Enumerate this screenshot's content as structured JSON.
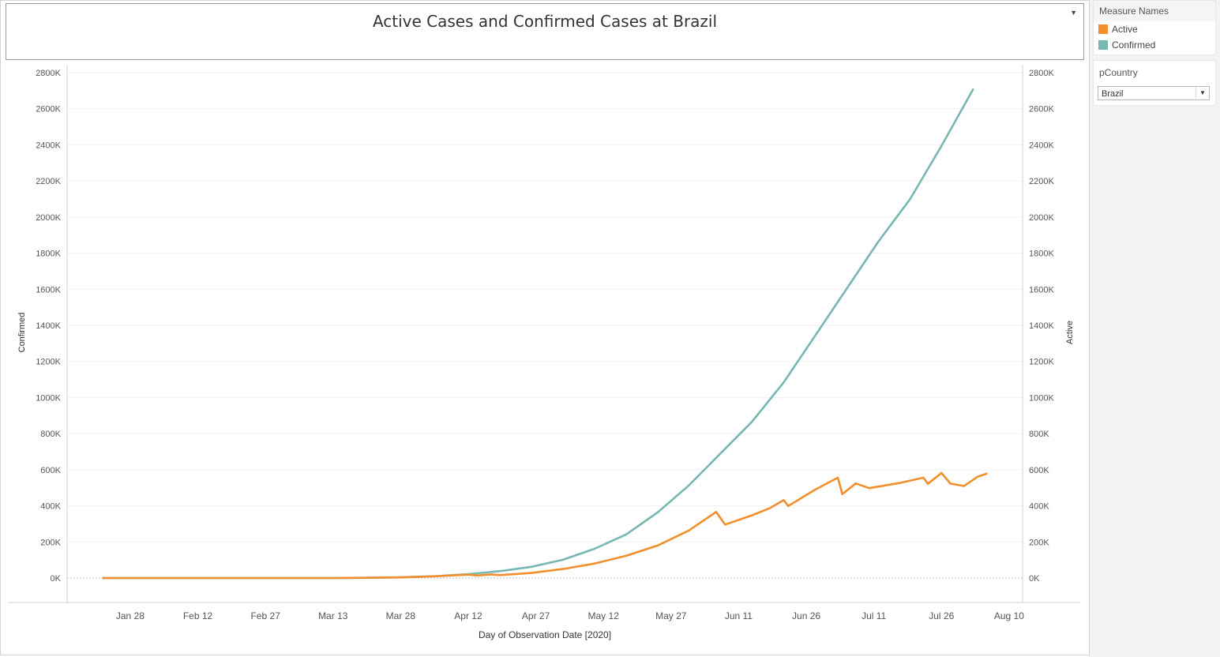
{
  "title": "Active Cases and Confirmed Cases at Brazil",
  "legend": {
    "header": "Measure Names",
    "items": [
      {
        "label": "Active",
        "color": "#f28e2b"
      },
      {
        "label": "Confirmed",
        "color": "#76b7b2"
      }
    ]
  },
  "filter": {
    "label": "pCountry",
    "selected": "Brazil"
  },
  "chart_data": {
    "type": "line",
    "xlabel": "Day of Observation Date [2020]",
    "ylabel_left": "Confirmed",
    "ylabel_right": "Active",
    "ylim": [
      0,
      2800000
    ],
    "yticks": [
      0,
      200000,
      400000,
      600000,
      800000,
      1000000,
      1200000,
      1400000,
      1600000,
      1800000,
      2000000,
      2200000,
      2400000,
      2600000,
      2800000
    ],
    "ytick_labels": [
      "0K",
      "200K",
      "400K",
      "600K",
      "800K",
      "1000K",
      "1200K",
      "1400K",
      "1600K",
      "1800K",
      "2000K",
      "2200K",
      "2400K",
      "2600K",
      "2800K"
    ],
    "xlim": [
      "2020-01-14",
      "2020-08-13"
    ],
    "xticks": [
      "2020-01-28",
      "2020-02-12",
      "2020-02-27",
      "2020-03-13",
      "2020-03-28",
      "2020-04-12",
      "2020-04-27",
      "2020-05-12",
      "2020-05-27",
      "2020-06-11",
      "2020-06-26",
      "2020-07-11",
      "2020-07-26",
      "2020-08-10"
    ],
    "xtick_labels": [
      "Jan 28",
      "Feb 12",
      "Feb 27",
      "Mar 13",
      "Mar 28",
      "Apr 12",
      "Apr 27",
      "May 12",
      "May 27",
      "Jun 11",
      "Jun 26",
      "Jul 11",
      "Jul 26",
      "Aug 10"
    ],
    "grid": true,
    "series": [
      {
        "name": "Confirmed",
        "color": "#76b7b2",
        "points": [
          [
            "2020-01-22",
            0
          ],
          [
            "2020-02-26",
            1
          ],
          [
            "2020-03-13",
            150
          ],
          [
            "2020-03-20",
            900
          ],
          [
            "2020-03-28",
            3900
          ],
          [
            "2020-04-05",
            11000
          ],
          [
            "2020-04-12",
            22000
          ],
          [
            "2020-04-19",
            38000
          ],
          [
            "2020-04-26",
            62000
          ],
          [
            "2020-05-03",
            101000
          ],
          [
            "2020-05-10",
            162000
          ],
          [
            "2020-05-17",
            241000
          ],
          [
            "2020-05-24",
            363000
          ],
          [
            "2020-05-31",
            514000
          ],
          [
            "2020-06-07",
            691000
          ],
          [
            "2020-06-14",
            867000
          ],
          [
            "2020-06-21",
            1084000
          ],
          [
            "2020-06-28",
            1344000
          ],
          [
            "2020-07-05",
            1604000
          ],
          [
            "2020-07-12",
            1864000
          ],
          [
            "2020-07-19",
            2098000
          ],
          [
            "2020-07-26",
            2394000
          ],
          [
            "2020-08-02",
            2707000
          ]
        ]
      },
      {
        "name": "Active",
        "color": "#f28e2b",
        "points": [
          [
            "2020-01-22",
            0
          ],
          [
            "2020-03-13",
            150
          ],
          [
            "2020-03-28",
            3700
          ],
          [
            "2020-04-05",
            10000
          ],
          [
            "2020-04-12",
            19000
          ],
          [
            "2020-04-14",
            14000
          ],
          [
            "2020-04-17",
            20000
          ],
          [
            "2020-04-19",
            16000
          ],
          [
            "2020-04-26",
            28000
          ],
          [
            "2020-05-03",
            50000
          ],
          [
            "2020-05-10",
            80000
          ],
          [
            "2020-05-17",
            123000
          ],
          [
            "2020-05-24",
            180000
          ],
          [
            "2020-05-31",
            264000
          ],
          [
            "2020-06-06",
            366000
          ],
          [
            "2020-06-08",
            296000
          ],
          [
            "2020-06-14",
            348000
          ],
          [
            "2020-06-18",
            388000
          ],
          [
            "2020-06-21",
            432000
          ],
          [
            "2020-06-22",
            399000
          ],
          [
            "2020-06-28",
            490000
          ],
          [
            "2020-07-03",
            556000
          ],
          [
            "2020-07-04",
            465000
          ],
          [
            "2020-07-07",
            524000
          ],
          [
            "2020-07-10",
            498000
          ],
          [
            "2020-07-17",
            528000
          ],
          [
            "2020-07-22",
            556000
          ],
          [
            "2020-07-23",
            522000
          ],
          [
            "2020-07-26",
            582000
          ],
          [
            "2020-07-28",
            523000
          ],
          [
            "2020-07-31",
            510000
          ],
          [
            "2020-08-03",
            561000
          ],
          [
            "2020-08-05",
            578000
          ]
        ]
      }
    ]
  }
}
